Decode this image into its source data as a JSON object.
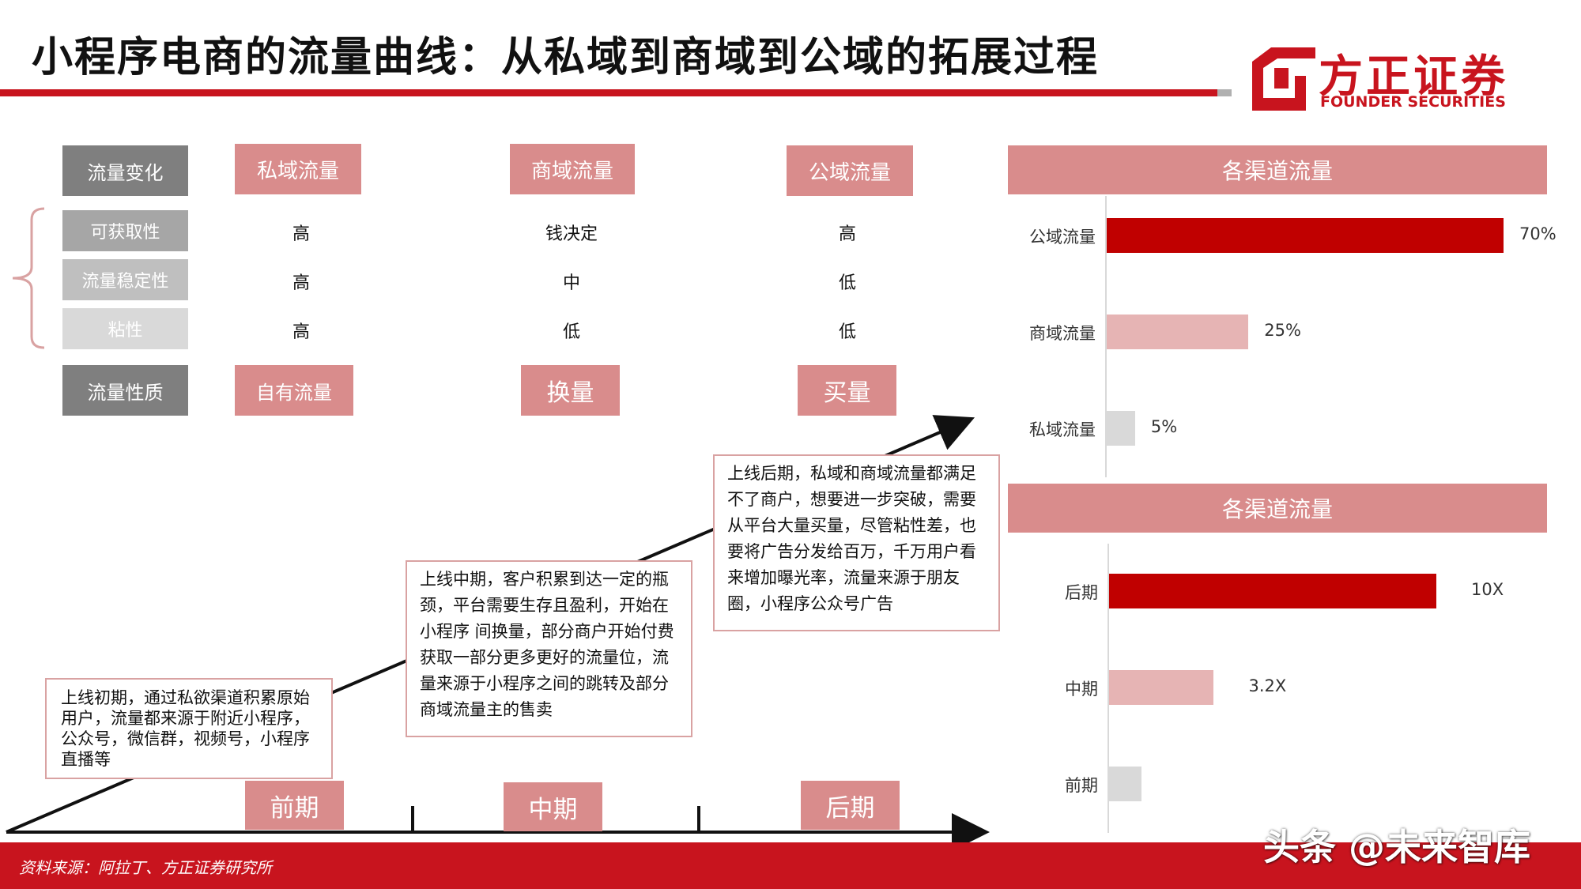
{
  "header": {
    "title": "小程序电商的流量曲线：从私域到商域到公域的拓展过程",
    "logo_cn": "方正证券",
    "logo_en": "FOUNDER SECURITIES"
  },
  "table": {
    "row_headers": [
      "流量变化",
      "可获取性",
      "流量稳定性",
      "粘性",
      "流量性质"
    ],
    "columns": [
      {
        "head": "私域流量",
        "values": [
          "高",
          "高",
          "高"
        ],
        "nature": "自有流量"
      },
      {
        "head": "商域流量",
        "values": [
          "钱决定",
          "中",
          "低"
        ],
        "nature": "换量"
      },
      {
        "head": "公域流量",
        "values": [
          "高",
          "低",
          "低"
        ],
        "nature": "买量"
      }
    ]
  },
  "notes": {
    "early": "上线初期，通过私欲渠道积累原始用户，流量都来源于附近小程序，公众号，微信群，视频号，小程序直播等",
    "mid": "上线中期，客户积累到达一定的瓶颈，平台需要生存且盈利，开始在小程序 间换量，部分商户开始付费获取一部分更多更好的流量位，流量来源于小程序之间的跳转及部分商域流量主的售卖",
    "late": "上线后期，私域和商域流量都满足不了商户，想要进一步突破，需要从平台大量买量，尽管粘性差，也要将广告分发给百万，千万用户看来增加曝光率，流量来源于朋友圈，小程序公众号广告"
  },
  "phases": [
    "前期",
    "中期",
    "后期"
  ],
  "chart_data": [
    {
      "type": "bar",
      "orientation": "horizontal",
      "title": "各渠道流量",
      "categories": [
        "公域流量",
        "商域流量",
        "私域流量"
      ],
      "values": [
        70,
        25,
        5
      ],
      "value_labels": [
        "70%",
        "25%",
        "5%"
      ],
      "colors": [
        "#c00000",
        "#e6b4b4",
        "#d9d9d9"
      ]
    },
    {
      "type": "bar",
      "orientation": "horizontal",
      "title": "各渠道流量",
      "categories": [
        "后期",
        "中期",
        "前期"
      ],
      "values": [
        10,
        3.2,
        1
      ],
      "value_labels": [
        "10X",
        "3.2X",
        ""
      ],
      "colors": [
        "#c00000",
        "#e6b4b4",
        "#d9d9d9"
      ]
    }
  ],
  "footer": {
    "source": "资料来源：阿拉丁、方正证券研究所",
    "watermark": "头条 @未来智库"
  },
  "colors": {
    "brand_red": "#c8141e",
    "pink": "#d98c8c",
    "dark_gray": "#7f7f7f"
  }
}
